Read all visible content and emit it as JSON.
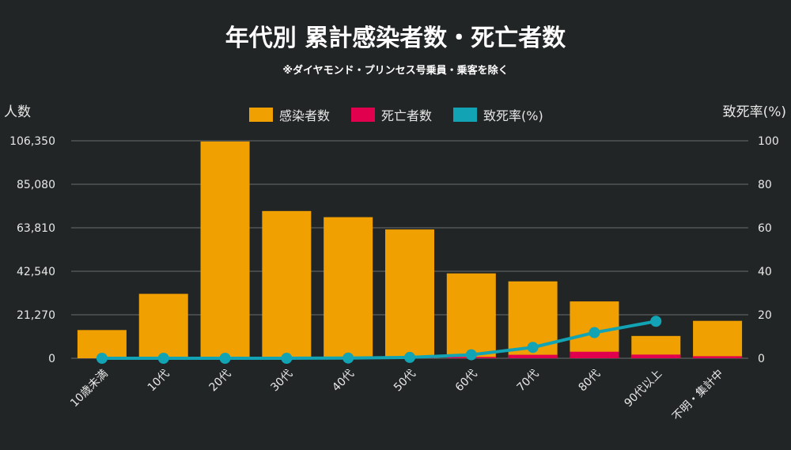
{
  "chart_data": {
    "type": "bar",
    "title": "年代別 累計感染者数・死亡者数",
    "subtitle": "※ダイヤモンド・プリンセス号乗員・乗客を除く",
    "ylabel_left": "人数",
    "ylabel_right": "致死率(%)",
    "categories": [
      "10歳未満",
      "10代",
      "20代",
      "30代",
      "40代",
      "50代",
      "60代",
      "70代",
      "80代",
      "90代以上",
      "不明・集計中"
    ],
    "yticks_left": [
      "0",
      "21,270",
      "42,540",
      "63,810",
      "85,080",
      "106,350"
    ],
    "yticks_right": [
      "0",
      "20",
      "40",
      "60",
      "80",
      "100"
    ],
    "ylim_left": [
      0,
      106350
    ],
    "ylim_right": [
      0,
      100
    ],
    "legend_position": "top-center",
    "grid": true,
    "series": [
      {
        "name": "感染者数",
        "kind": "bar",
        "axis": "left",
        "color": "#f0a000",
        "values": [
          13800,
          31500,
          106000,
          72000,
          69000,
          63000,
          41500,
          37600,
          27800,
          10900,
          18300
        ]
      },
      {
        "name": "死亡者数",
        "kind": "bar",
        "axis": "left",
        "color": "#e0004d",
        "values": [
          0,
          0,
          8,
          20,
          60,
          230,
          650,
          1700,
          3200,
          1800,
          1000
        ]
      },
      {
        "name": "致死率(%)",
        "kind": "line",
        "axis": "right",
        "color": "#12a4b4",
        "values": [
          0,
          0,
          0,
          0,
          0.1,
          0.4,
          1.6,
          5,
          11.8,
          17,
          null
        ]
      }
    ]
  }
}
